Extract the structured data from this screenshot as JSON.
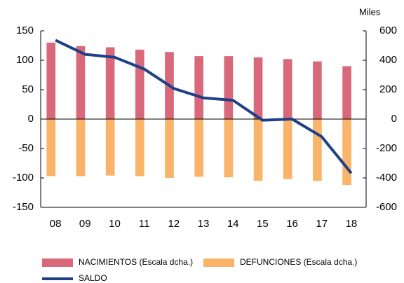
{
  "chart_data": {
    "type": "bar",
    "y2_unit_label": "Miles",
    "categories": [
      "08",
      "09",
      "10",
      "11",
      "12",
      "13",
      "14",
      "15",
      "16",
      "17",
      "18"
    ],
    "series": [
      {
        "name": "NACIMIENTOS (Escala dcha.)",
        "type": "bar",
        "axis": "y2",
        "color": "#d9697a",
        "values": [
          520,
          496,
          488,
          472,
          456,
          428,
          428,
          420,
          408,
          392,
          360
        ]
      },
      {
        "name": "DEFUNCIONES (Escala dcha.)",
        "type": "bar",
        "axis": "y2",
        "color": "#f9b46a",
        "values": [
          -388,
          -388,
          -384,
          -388,
          -400,
          -392,
          -396,
          -420,
          -408,
          -420,
          -448
        ]
      },
      {
        "name": "SALDO",
        "type": "line",
        "color": "#1f3f86",
        "values": [
          134,
          110,
          105,
          85,
          52,
          36,
          32,
          -2,
          0,
          -30,
          -92
        ]
      }
    ],
    "ylim": [
      -150,
      150
    ],
    "yticks": [
      -150,
      -100,
      -50,
      0,
      50,
      100,
      150
    ],
    "y2lim": [
      -600,
      600
    ],
    "y2ticks": [
      -600,
      -400,
      -200,
      0,
      200,
      400,
      600
    ]
  }
}
